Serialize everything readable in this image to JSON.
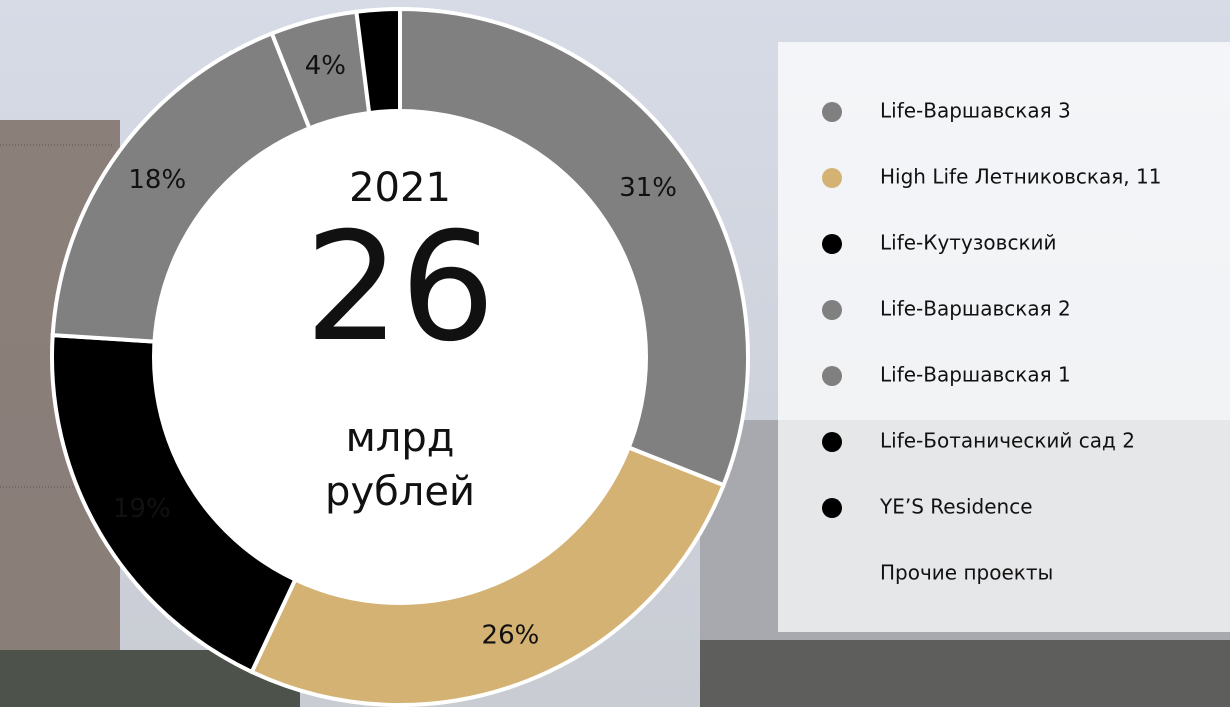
{
  "chart_data": {
    "type": "pie",
    "categories": [
      "Life-Варшавская 3",
      "High Life Летниковская, 11",
      "Life-Кутузовский",
      "Life-Варшавская 2",
      "Life-Варшавская 1",
      "Life-Ботанический сад 2",
      "YE’S Residence",
      "Прочие проекты"
    ],
    "values": [
      31,
      26,
      19,
      18,
      4,
      2,
      null,
      null
    ],
    "value_labels": [
      "31%",
      "26%",
      "19%",
      "18%",
      "4%",
      null,
      null,
      null
    ],
    "colors": [
      "#808080",
      "#d4b273",
      "#000000",
      "#808080",
      "#808080",
      "#000000",
      "#000000",
      null
    ],
    "center_year": "2021",
    "center_value": "26",
    "center_unit": [
      "млрд",
      "рублей"
    ]
  }
}
